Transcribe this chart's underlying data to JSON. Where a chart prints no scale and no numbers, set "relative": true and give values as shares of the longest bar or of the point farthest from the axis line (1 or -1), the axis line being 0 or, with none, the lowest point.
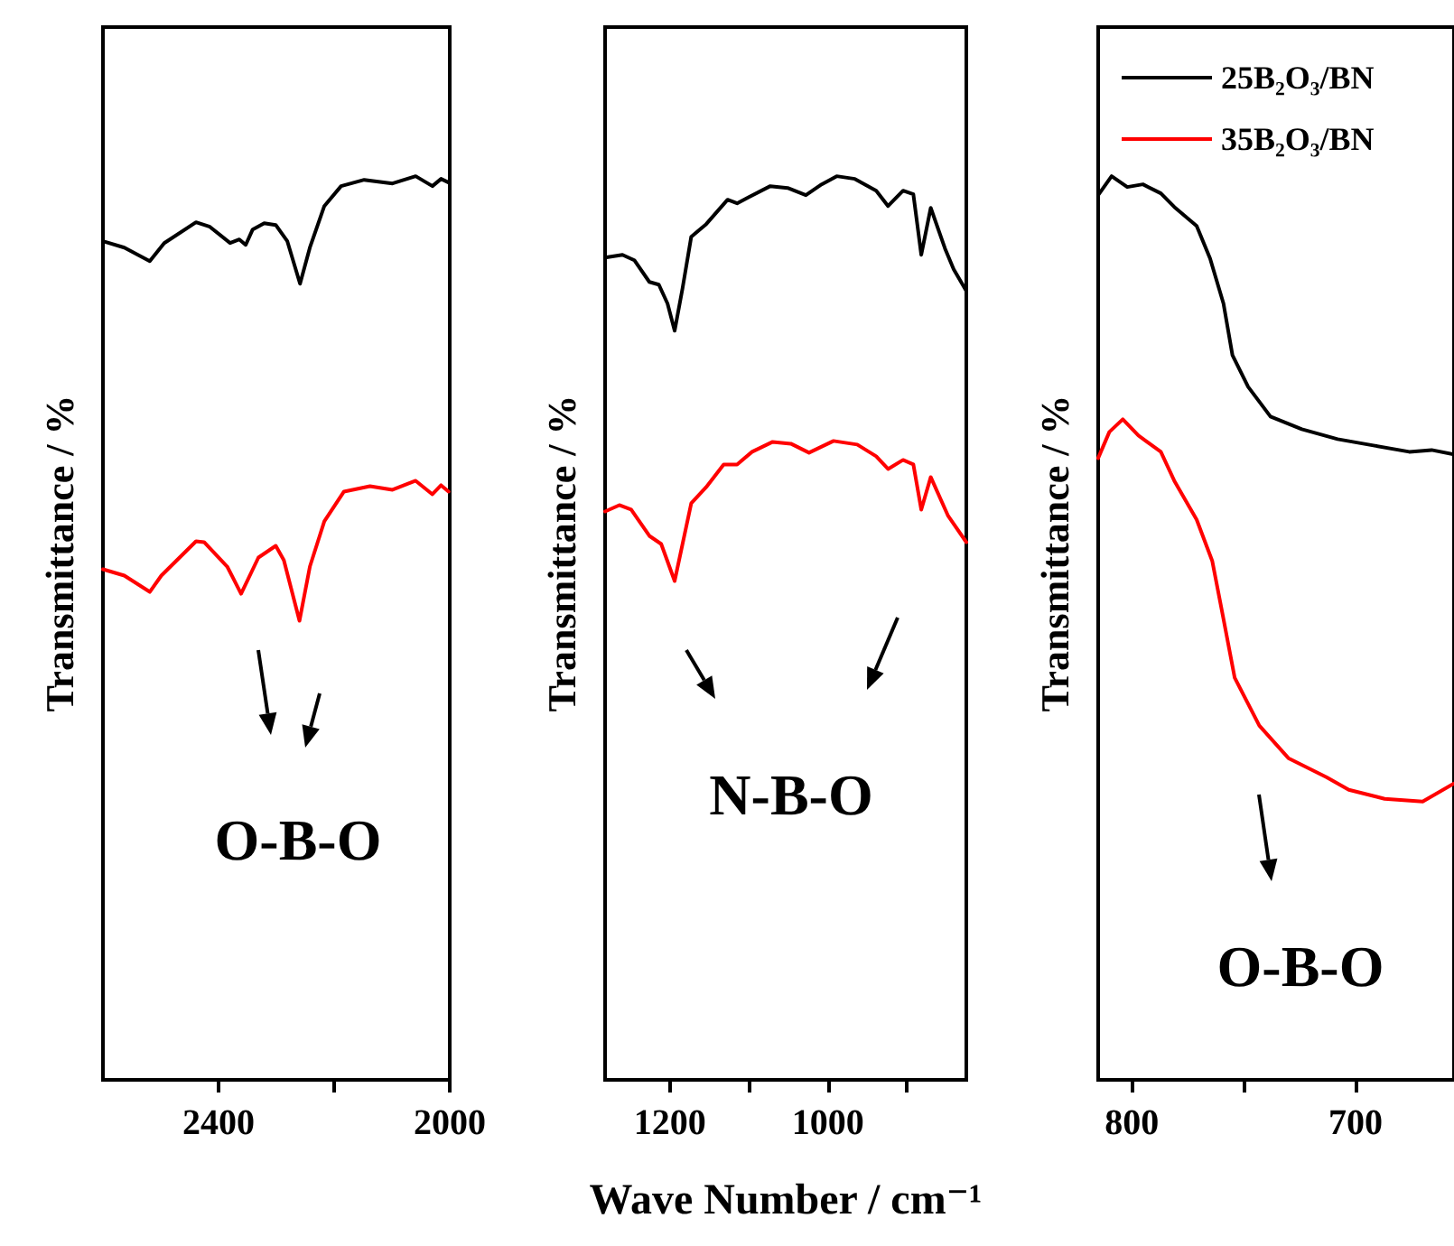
{
  "chart_data": [
    {
      "type": "line",
      "relative": true,
      "ylabel": "Transmittance / %",
      "xlim": [
        2600,
        2000
      ],
      "xticks": [
        2400,
        {
          "value": 2200,
          "label": null
        },
        2000
      ],
      "annotations": [
        "O-B-O"
      ],
      "series": [
        {
          "color": "#000000",
          "x": [
            2600,
            2563,
            2519,
            2494,
            2439,
            2415,
            2380,
            2364,
            2353,
            2341,
            2321,
            2301,
            2281,
            2259,
            2242,
            2217,
            2188,
            2148,
            2099,
            2059,
            2030,
            2015,
            2002
          ],
          "values": [
            0.928,
            0.921,
            0.906,
            0.926,
            0.949,
            0.944,
            0.926,
            0.93,
            0.924,
            0.941,
            0.948,
            0.946,
            0.928,
            0.881,
            0.921,
            0.967,
            0.989,
            0.996,
            0.992,
            1.0,
            0.989,
            0.997,
            0.993
          ]
        },
        {
          "color": "#ff0000",
          "x": [
            2600,
            2563,
            2519,
            2499,
            2439,
            2425,
            2385,
            2361,
            2331,
            2301,
            2287,
            2260,
            2242,
            2217,
            2183,
            2138,
            2099,
            2059,
            2030,
            2015,
            2002
          ],
          "values": [
            0.565,
            0.558,
            0.54,
            0.558,
            0.596,
            0.595,
            0.568,
            0.538,
            0.578,
            0.591,
            0.575,
            0.508,
            0.568,
            0.618,
            0.651,
            0.657,
            0.653,
            0.663,
            0.648,
            0.658,
            0.651
          ]
        }
      ]
    },
    {
      "type": "line",
      "relative": true,
      "ylabel": "Transmittance / %",
      "xlabel": "Wave Number / cm⁻¹",
      "xlim": [
        1282,
        825
      ],
      "xticks": [
        1200,
        {
          "value": 1100,
          "label": null
        },
        1000,
        {
          "value": 900,
          "label": null
        }
      ],
      "annotations": [
        "N-B-O"
      ],
      "series": [
        {
          "color": "#000000",
          "x": [
            1282,
            1260,
            1245,
            1226,
            1214,
            1203,
            1194,
            1184,
            1173,
            1154,
            1127,
            1115,
            1100,
            1073,
            1051,
            1028,
            1008,
            989,
            966,
            939,
            924,
            905,
            892,
            882,
            870,
            852,
            841,
            825
          ],
          "values": [
            0.91,
            0.913,
            0.907,
            0.883,
            0.88,
            0.859,
            0.829,
            0.876,
            0.933,
            0.947,
            0.974,
            0.97,
            0.977,
            0.989,
            0.987,
            0.979,
            0.991,
            1.0,
            0.997,
            0.984,
            0.967,
            0.984,
            0.98,
            0.913,
            0.965,
            0.92,
            0.897,
            0.873
          ]
        },
        {
          "color": "#ff0000",
          "x": [
            1282,
            1264,
            1249,
            1226,
            1211,
            1194,
            1173,
            1154,
            1132,
            1115,
            1096,
            1070,
            1047,
            1024,
            993,
            963,
            939,
            924,
            905,
            892,
            882,
            870,
            848,
            825
          ],
          "values": [
            0.629,
            0.636,
            0.631,
            0.602,
            0.593,
            0.552,
            0.638,
            0.656,
            0.681,
            0.681,
            0.695,
            0.706,
            0.704,
            0.694,
            0.707,
            0.703,
            0.69,
            0.676,
            0.686,
            0.681,
            0.631,
            0.667,
            0.624,
            0.595
          ]
        }
      ]
    },
    {
      "type": "line",
      "relative": true,
      "ylabel": "Transmittance / %",
      "xlim": [
        815,
        656
      ],
      "xticks": [
        800,
        {
          "value": 750,
          "label": null
        },
        700
      ],
      "annotations": [
        "O-B-O"
      ],
      "legend": "top",
      "series": [
        {
          "name": "25B₂O₃/BN",
          "color": "#000000",
          "x": [
            815,
            809,
            802,
            795,
            787,
            781,
            771,
            765,
            759,
            755,
            748,
            738,
            724,
            708,
            692,
            676,
            666,
            656
          ],
          "values": [
            0.979,
            1.0,
            0.988,
            0.991,
            0.981,
            0.966,
            0.945,
            0.909,
            0.859,
            0.802,
            0.767,
            0.734,
            0.72,
            0.709,
            0.702,
            0.695,
            0.697,
            0.692
          ]
        },
        {
          "name": "35B₂O₃/BN",
          "color": "#ff0000",
          "x": [
            815,
            810,
            804,
            797,
            787,
            781,
            771,
            764,
            759,
            754,
            743,
            730,
            713,
            703,
            687,
            670,
            656
          ],
          "values": [
            0.688,
            0.717,
            0.731,
            0.713,
            0.695,
            0.663,
            0.62,
            0.574,
            0.51,
            0.445,
            0.392,
            0.356,
            0.335,
            0.321,
            0.311,
            0.308,
            0.328
          ]
        }
      ]
    }
  ]
}
